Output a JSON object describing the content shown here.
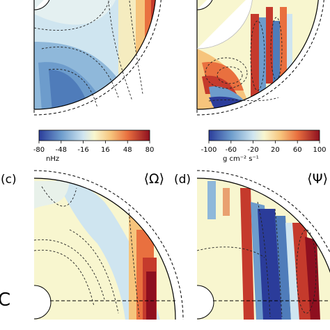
{
  "chart_data": [
    {
      "type": "heatmap",
      "panel": "top-left",
      "colorbar": {
        "ticks": [
          "-80",
          "-48",
          "-16",
          "16",
          "48",
          "80"
        ],
        "unit": "nHz",
        "range": [
          -80,
          80
        ]
      }
    },
    {
      "type": "heatmap",
      "panel": "top-right",
      "colorbar": {
        "ticks": [
          "-100",
          "-60",
          "-20",
          "20",
          "60",
          "100"
        ],
        "unit": "g cm⁻² s⁻¹",
        "range": [
          -100,
          100
        ]
      }
    },
    {
      "type": "heatmap",
      "panel": "(c)",
      "panel_label": "(c)",
      "title": "⟨Ω⟩"
    },
    {
      "type": "heatmap",
      "panel": "(d)",
      "panel_label": "(d)",
      "title": "⟨Ψ⟩"
    }
  ],
  "side_letter": "C",
  "colormap": {
    "dark_blue": "#2b3c9a",
    "blue": "#6d9ccc",
    "light_blue": "#cfe5f0",
    "pale": "#f8f6cf",
    "orange": "#f3a55e",
    "red": "#c53a2c",
    "dark_red": "#8e0f1f"
  }
}
